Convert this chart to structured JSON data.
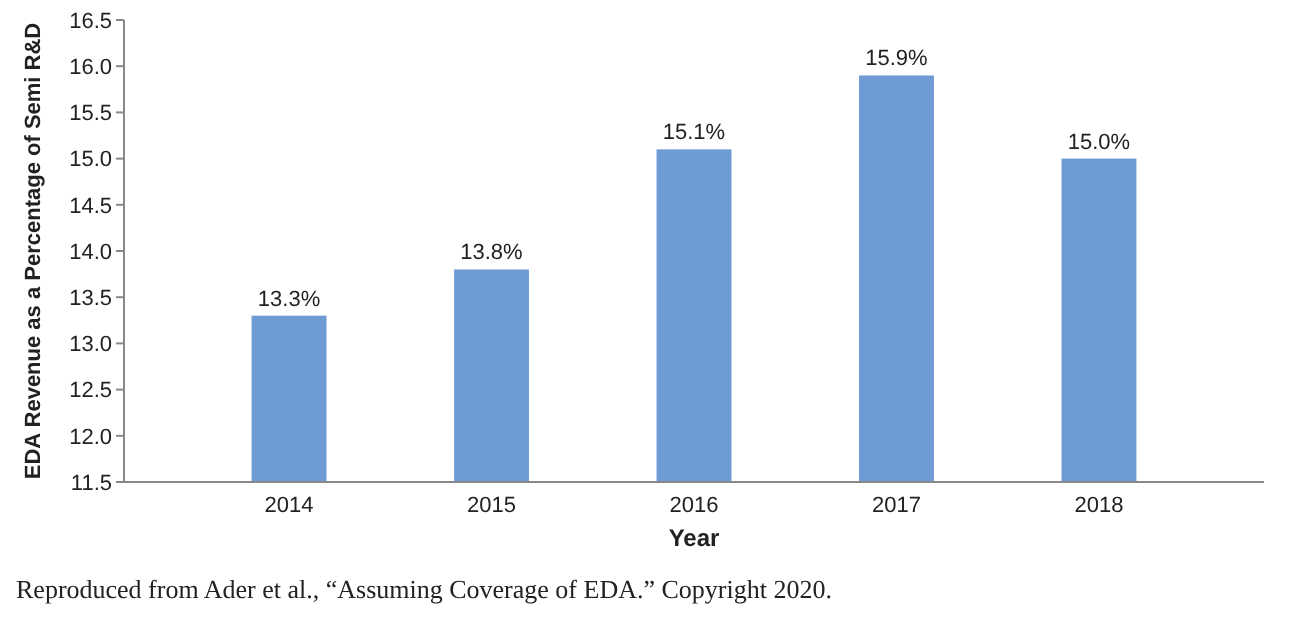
{
  "chart_data": {
    "type": "bar",
    "xlabel": "Year",
    "ylabel": "EDA Revenue as a Percentage of Semi R&D",
    "categories": [
      "2014",
      "2015",
      "2016",
      "2017",
      "2018"
    ],
    "values": [
      13.3,
      13.8,
      15.1,
      15.9,
      15.0
    ],
    "value_labels": [
      "13.3%",
      "13.8%",
      "15.1%",
      "15.9%",
      "15.0%"
    ],
    "color": "#6f9bd4",
    "ylim": [
      11.5,
      16.5
    ],
    "yticks": [
      11.5,
      {
        "value": 12,
        "label": "12.0"
      },
      12.5,
      {
        "value": 13,
        "label": "13.0"
      },
      13.5,
      {
        "value": 14,
        "label": "14.0"
      },
      14.5,
      {
        "value": 15,
        "label": "15.0"
      },
      15.5,
      {
        "value": 16,
        "label": "16.0"
      },
      16.5
    ],
    "grid": false,
    "annotations": [
      "Reproduced from Ader et al., “Assuming Coverage of EDA.” Copyright 2020."
    ]
  }
}
